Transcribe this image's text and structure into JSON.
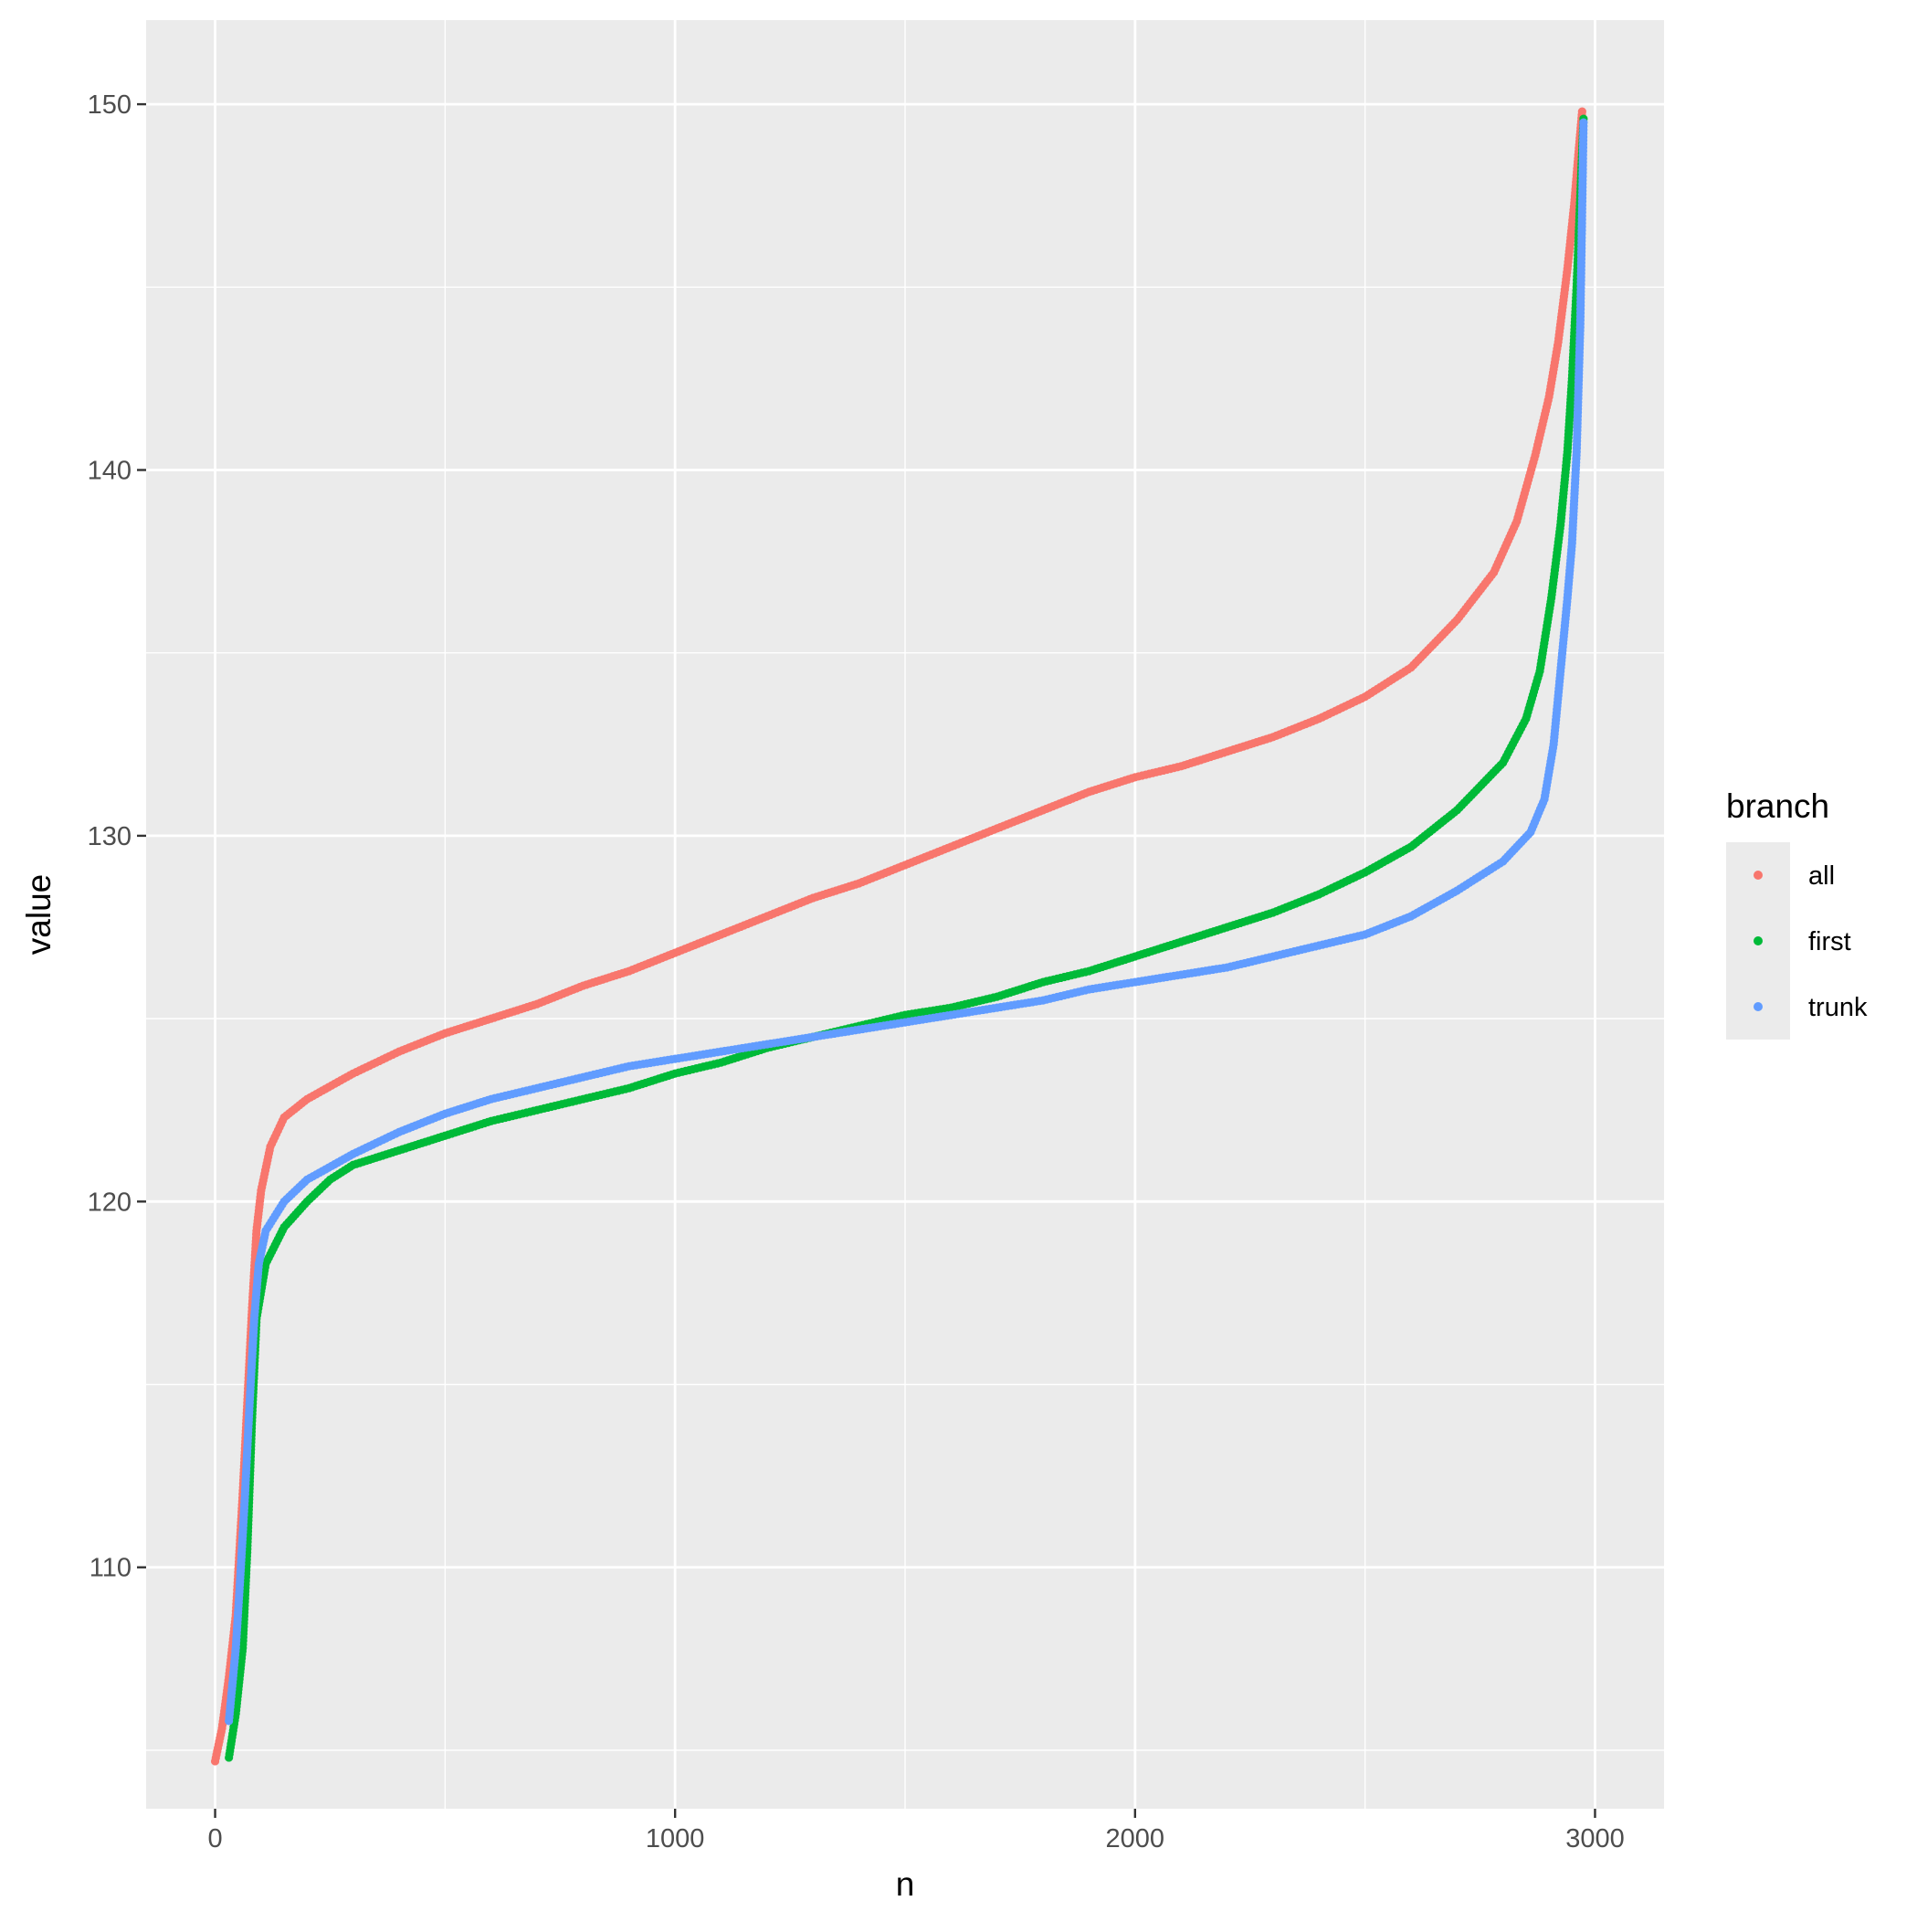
{
  "chart_data": {
    "type": "scatter",
    "title": "",
    "xlabel": "n",
    "ylabel": "value",
    "xlim": [
      -150,
      3150
    ],
    "ylim": [
      103.4,
      152.3
    ],
    "x_ticks": [
      0,
      1000,
      2000,
      3000
    ],
    "x_tick_labels": [
      "0",
      "1000",
      "2000",
      "3000"
    ],
    "x_minor_ticks": [
      500,
      1500,
      2500
    ],
    "y_ticks": [
      110,
      120,
      130,
      140,
      150
    ],
    "y_tick_labels": [
      "110",
      "120",
      "130",
      "140",
      "150"
    ],
    "y_minor_ticks": [
      105,
      115,
      125,
      135,
      145
    ],
    "grid": true,
    "panel_background": "#ebebeb",
    "grid_color": "#ffffff",
    "legend": {
      "title": "branch",
      "position": "right",
      "entries": [
        "all",
        "first",
        "trunk"
      ]
    },
    "series": [
      {
        "name": "all",
        "color": "#f8766d",
        "points": [
          [
            0,
            104.7
          ],
          [
            15,
            105.6
          ],
          [
            30,
            107.0
          ],
          [
            45,
            108.7
          ],
          [
            60,
            112.0
          ],
          [
            70,
            114.5
          ],
          [
            80,
            117.0
          ],
          [
            90,
            119.2
          ],
          [
            100,
            120.3
          ],
          [
            120,
            121.5
          ],
          [
            150,
            122.3
          ],
          [
            200,
            122.8
          ],
          [
            300,
            123.5
          ],
          [
            400,
            124.1
          ],
          [
            500,
            124.6
          ],
          [
            600,
            125.0
          ],
          [
            700,
            125.4
          ],
          [
            800,
            125.9
          ],
          [
            900,
            126.3
          ],
          [
            1000,
            126.8
          ],
          [
            1100,
            127.3
          ],
          [
            1200,
            127.8
          ],
          [
            1300,
            128.3
          ],
          [
            1400,
            128.7
          ],
          [
            1500,
            129.2
          ],
          [
            1600,
            129.7
          ],
          [
            1700,
            130.2
          ],
          [
            1800,
            130.7
          ],
          [
            1900,
            131.2
          ],
          [
            2000,
            131.6
          ],
          [
            2100,
            131.9
          ],
          [
            2200,
            132.3
          ],
          [
            2300,
            132.7
          ],
          [
            2400,
            133.2
          ],
          [
            2500,
            133.8
          ],
          [
            2600,
            134.6
          ],
          [
            2700,
            135.9
          ],
          [
            2780,
            137.2
          ],
          [
            2830,
            138.6
          ],
          [
            2870,
            140.4
          ],
          [
            2900,
            142.0
          ],
          [
            2920,
            143.5
          ],
          [
            2940,
            145.5
          ],
          [
            2955,
            147.3
          ],
          [
            2965,
            148.8
          ],
          [
            2972,
            149.8
          ]
        ]
      },
      {
        "name": "first",
        "color": "#00ba38",
        "points": [
          [
            30,
            104.8
          ],
          [
            45,
            106.0
          ],
          [
            60,
            107.8
          ],
          [
            70,
            110.5
          ],
          [
            80,
            114.0
          ],
          [
            90,
            116.8
          ],
          [
            110,
            118.3
          ],
          [
            150,
            119.3
          ],
          [
            200,
            120.0
          ],
          [
            250,
            120.6
          ],
          [
            300,
            121.0
          ],
          [
            400,
            121.4
          ],
          [
            500,
            121.8
          ],
          [
            600,
            122.2
          ],
          [
            700,
            122.5
          ],
          [
            800,
            122.8
          ],
          [
            900,
            123.1
          ],
          [
            1000,
            123.5
          ],
          [
            1100,
            123.8
          ],
          [
            1200,
            124.2
          ],
          [
            1300,
            124.5
          ],
          [
            1400,
            124.8
          ],
          [
            1500,
            125.1
          ],
          [
            1600,
            125.3
          ],
          [
            1700,
            125.6
          ],
          [
            1800,
            126.0
          ],
          [
            1900,
            126.3
          ],
          [
            2000,
            126.7
          ],
          [
            2100,
            127.1
          ],
          [
            2200,
            127.5
          ],
          [
            2300,
            127.9
          ],
          [
            2400,
            128.4
          ],
          [
            2500,
            129.0
          ],
          [
            2600,
            129.7
          ],
          [
            2700,
            130.7
          ],
          [
            2800,
            132.0
          ],
          [
            2850,
            133.2
          ],
          [
            2880,
            134.5
          ],
          [
            2905,
            136.5
          ],
          [
            2925,
            138.5
          ],
          [
            2940,
            140.5
          ],
          [
            2950,
            142.5
          ],
          [
            2960,
            145.0
          ],
          [
            2968,
            147.5
          ],
          [
            2975,
            149.6
          ]
        ]
      },
      {
        "name": "trunk",
        "color": "#619cff",
        "points": [
          [
            30,
            105.8
          ],
          [
            45,
            107.8
          ],
          [
            55,
            109.8
          ],
          [
            65,
            112.0
          ],
          [
            75,
            114.5
          ],
          [
            85,
            116.8
          ],
          [
            95,
            118.3
          ],
          [
            110,
            119.2
          ],
          [
            150,
            120.0
          ],
          [
            200,
            120.6
          ],
          [
            300,
            121.3
          ],
          [
            400,
            121.9
          ],
          [
            500,
            122.4
          ],
          [
            600,
            122.8
          ],
          [
            700,
            123.1
          ],
          [
            800,
            123.4
          ],
          [
            900,
            123.7
          ],
          [
            1000,
            123.9
          ],
          [
            1100,
            124.1
          ],
          [
            1200,
            124.3
          ],
          [
            1300,
            124.5
          ],
          [
            1400,
            124.7
          ],
          [
            1500,
            124.9
          ],
          [
            1600,
            125.1
          ],
          [
            1700,
            125.3
          ],
          [
            1800,
            125.5
          ],
          [
            1900,
            125.8
          ],
          [
            2000,
            126.0
          ],
          [
            2100,
            126.2
          ],
          [
            2200,
            126.4
          ],
          [
            2300,
            126.7
          ],
          [
            2400,
            127.0
          ],
          [
            2500,
            127.3
          ],
          [
            2600,
            127.8
          ],
          [
            2700,
            128.5
          ],
          [
            2800,
            129.3
          ],
          [
            2860,
            130.1
          ],
          [
            2890,
            131.0
          ],
          [
            2910,
            132.5
          ],
          [
            2925,
            134.5
          ],
          [
            2940,
            136.5
          ],
          [
            2950,
            138.0
          ],
          [
            2960,
            140.5
          ],
          [
            2968,
            144.0
          ],
          [
            2975,
            149.5
          ]
        ]
      }
    ]
  }
}
